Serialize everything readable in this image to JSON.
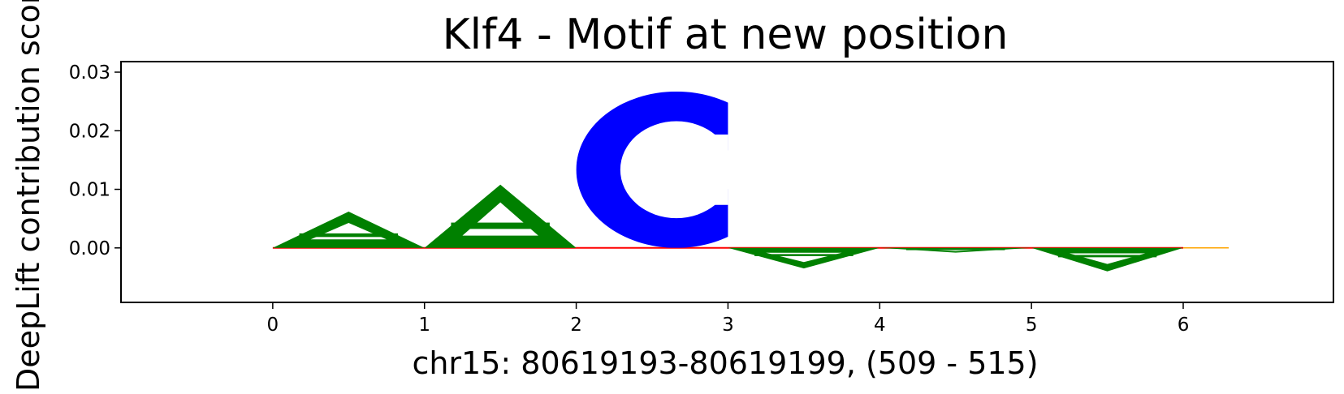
{
  "chart_data": {
    "type": "sequence-logo",
    "title": "Klf4 - Motif at new position",
    "xlabel": "chr15: 80619193-80619199, (509 - 515)",
    "ylabel": "DeepLift contribution score",
    "xlim": [
      -1.0,
      6.99
    ],
    "ylim": [
      -0.0093,
      0.0318
    ],
    "xticks": [
      "0",
      "1",
      "2",
      "3",
      "4",
      "5",
      "6"
    ],
    "yticks": [
      "0.00",
      "0.01",
      "0.02",
      "0.03"
    ],
    "letters": [
      {
        "position": 0,
        "letter": "A",
        "score": 0.0062
      },
      {
        "position": 1,
        "letter": "A",
        "score": 0.0108
      },
      {
        "position": 2,
        "letter": "C",
        "score": 0.0267
      },
      {
        "position": 3,
        "letter": "A",
        "score": -0.0035
      },
      {
        "position": 4,
        "letter": "A",
        "score": -0.0008
      },
      {
        "position": 5,
        "letter": "A",
        "score": -0.004
      }
    ],
    "colors": {
      "A": "#008000",
      "C": "#0000ff",
      "baseline": "#ff0000",
      "tail": "#ffa500"
    }
  }
}
